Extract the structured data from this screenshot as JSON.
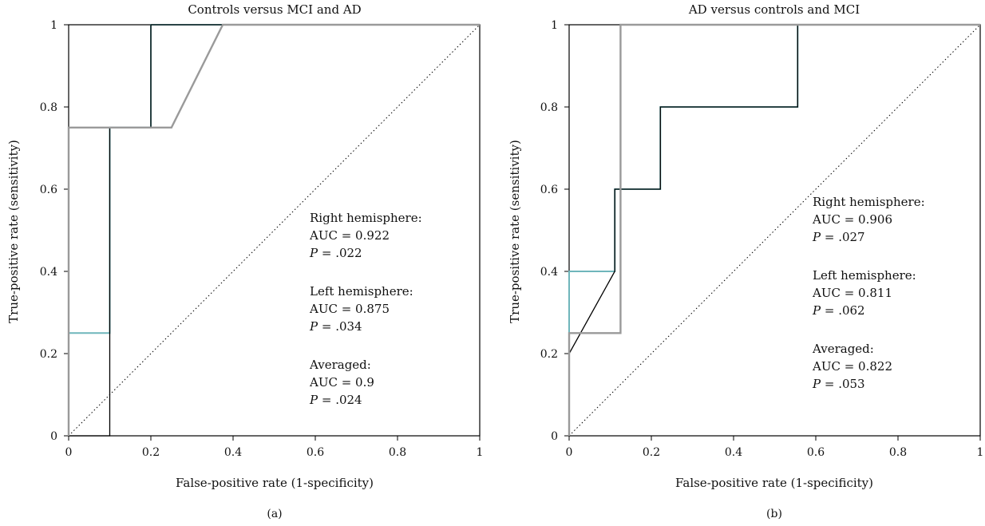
{
  "chart_data": [
    {
      "type": "line",
      "title": "Controls versus MCI and AD",
      "xlabel": "False-positive rate (1-specificity)",
      "ylabel": "True-positive rate (sensitivity)",
      "xlim": [
        0,
        1
      ],
      "ylim": [
        0,
        1
      ],
      "x_ticks": [
        "0",
        "0.2",
        "0.4",
        "0.6",
        "0.8",
        "1"
      ],
      "y_ticks": [
        "0",
        "0.2",
        "0.4",
        "0.6",
        "0.8",
        "1"
      ],
      "grid": false,
      "caption": "(a)",
      "reference_line": {
        "style": "dotted",
        "points": [
          [
            0,
            0
          ],
          [
            1,
            1
          ]
        ]
      },
      "series": [
        {
          "color": "#6fb6bb",
          "points": [
            [
              0,
              0
            ],
            [
              0,
              0.25
            ],
            [
              0.1,
              0.25
            ],
            [
              0.1,
              0.75
            ],
            [
              0.2,
              0.75
            ],
            [
              0.2,
              1
            ],
            [
              1,
              1
            ]
          ]
        },
        {
          "color": "#000000",
          "points": [
            [
              0,
              0
            ],
            [
              0.1,
              0
            ],
            [
              0.1,
              0.75
            ],
            [
              0.2,
              0.75
            ],
            [
              0.2,
              1
            ],
            [
              1,
              1
            ]
          ]
        },
        {
          "color": "#9a9a9a",
          "points": [
            [
              0,
              0
            ],
            [
              0,
              0.75
            ],
            [
              0.25,
              0.75
            ],
            [
              0.375,
              1
            ],
            [
              1,
              1
            ]
          ]
        }
      ],
      "annotations": [
        {
          "header": "Right hemisphere:",
          "auc": "AUC = 0.922",
          "p_prefix": "P",
          "p_rest": " = .022"
        },
        {
          "header": "Left hemisphere:",
          "auc": "AUC = 0.875",
          "p_prefix": "P",
          "p_rest": " = .034"
        },
        {
          "header": "Averaged:",
          "auc": "AUC = 0.9",
          "p_prefix": "P",
          "p_rest": " = .024"
        }
      ]
    },
    {
      "type": "line",
      "title": "AD versus controls and MCI",
      "xlabel": "False-positive rate (1-specificity)",
      "ylabel": "True-positive rate (sensitivity)",
      "xlim": [
        0,
        1
      ],
      "ylim": [
        0,
        1
      ],
      "x_ticks": [
        "0",
        "0.2",
        "0.4",
        "0.6",
        "0.8",
        "1"
      ],
      "y_ticks": [
        "0",
        "0.2",
        "0.4",
        "0.6",
        "0.8",
        "1"
      ],
      "grid": false,
      "caption": "(b)",
      "reference_line": {
        "style": "dotted",
        "points": [
          [
            0,
            0
          ],
          [
            1,
            1
          ]
        ]
      },
      "series": [
        {
          "color": "#6fb6bb",
          "points": [
            [
              0,
              0
            ],
            [
              0,
              0.4
            ],
            [
              0.111,
              0.4
            ],
            [
              0.111,
              0.6
            ],
            [
              0.222,
              0.6
            ],
            [
              0.222,
              0.8
            ],
            [
              0.556,
              0.8
            ],
            [
              0.556,
              1
            ],
            [
              1,
              1
            ]
          ]
        },
        {
          "color": "#000000",
          "points": [
            [
              0,
              0
            ],
            [
              0,
              0.2
            ],
            [
              0.111,
              0.4
            ],
            [
              0.111,
              0.6
            ],
            [
              0.222,
              0.6
            ],
            [
              0.222,
              0.8
            ],
            [
              0.556,
              0.8
            ],
            [
              0.556,
              1
            ],
            [
              1,
              1
            ]
          ]
        },
        {
          "color": "#9a9a9a",
          "points": [
            [
              0,
              0
            ],
            [
              0,
              0.25
            ],
            [
              0.125,
              0.25
            ],
            [
              0.125,
              1
            ],
            [
              1,
              1
            ]
          ]
        }
      ],
      "annotations": [
        {
          "header": "Right hemisphere:",
          "auc": "AUC = 0.906",
          "p_prefix": "P",
          "p_rest": " = .027"
        },
        {
          "header": "Left hemisphere:",
          "auc": "AUC = 0.811",
          "p_prefix": "P",
          "p_rest": " = .062"
        },
        {
          "header": "Averaged:",
          "auc": "AUC = 0.822",
          "p_prefix": "P",
          "p_rest": " = .053"
        }
      ]
    }
  ]
}
